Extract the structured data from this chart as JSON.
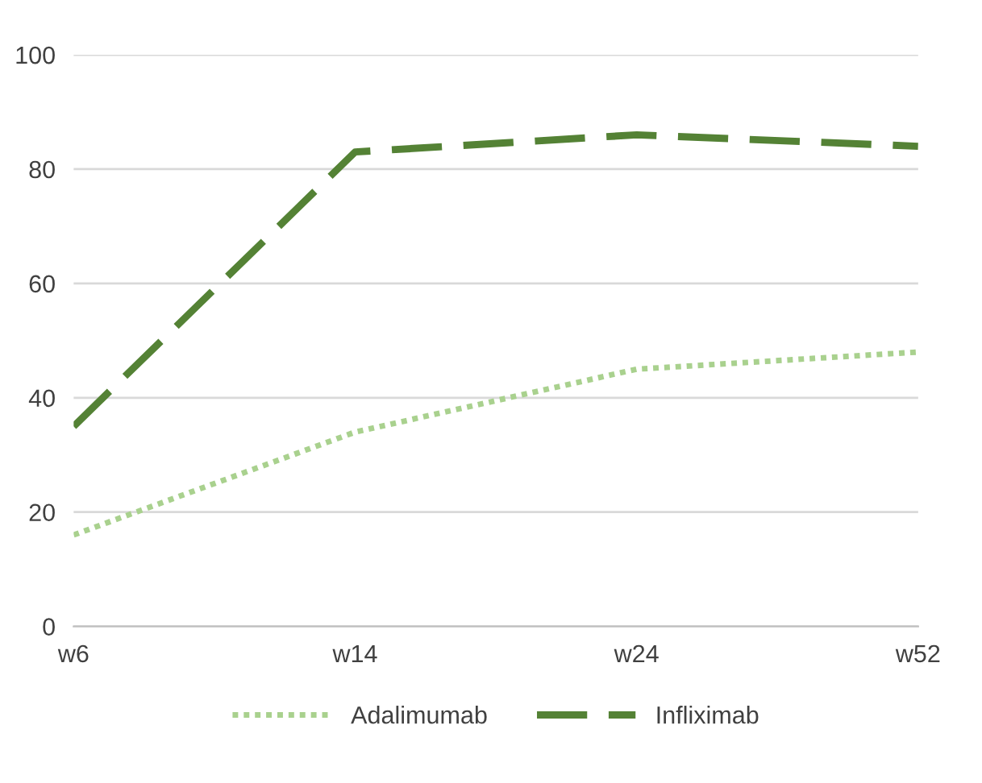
{
  "chart_data": {
    "type": "line",
    "categories": [
      "w6",
      "w14",
      "w24",
      "w52"
    ],
    "series": [
      {
        "name": "Adalimumab",
        "color": "#a9d18e",
        "values": [
          16,
          34,
          45,
          48
        ],
        "line_style": "dotted"
      },
      {
        "name": "Infliximab",
        "color": "#548235",
        "values": [
          35,
          83,
          86,
          84
        ],
        "line_style": "dashed"
      }
    ],
    "ylim": [
      0,
      100
    ],
    "yticks": [
      0,
      20,
      40,
      60,
      80,
      100
    ],
    "grid": "y",
    "legend": "bottom",
    "marker": "none"
  }
}
